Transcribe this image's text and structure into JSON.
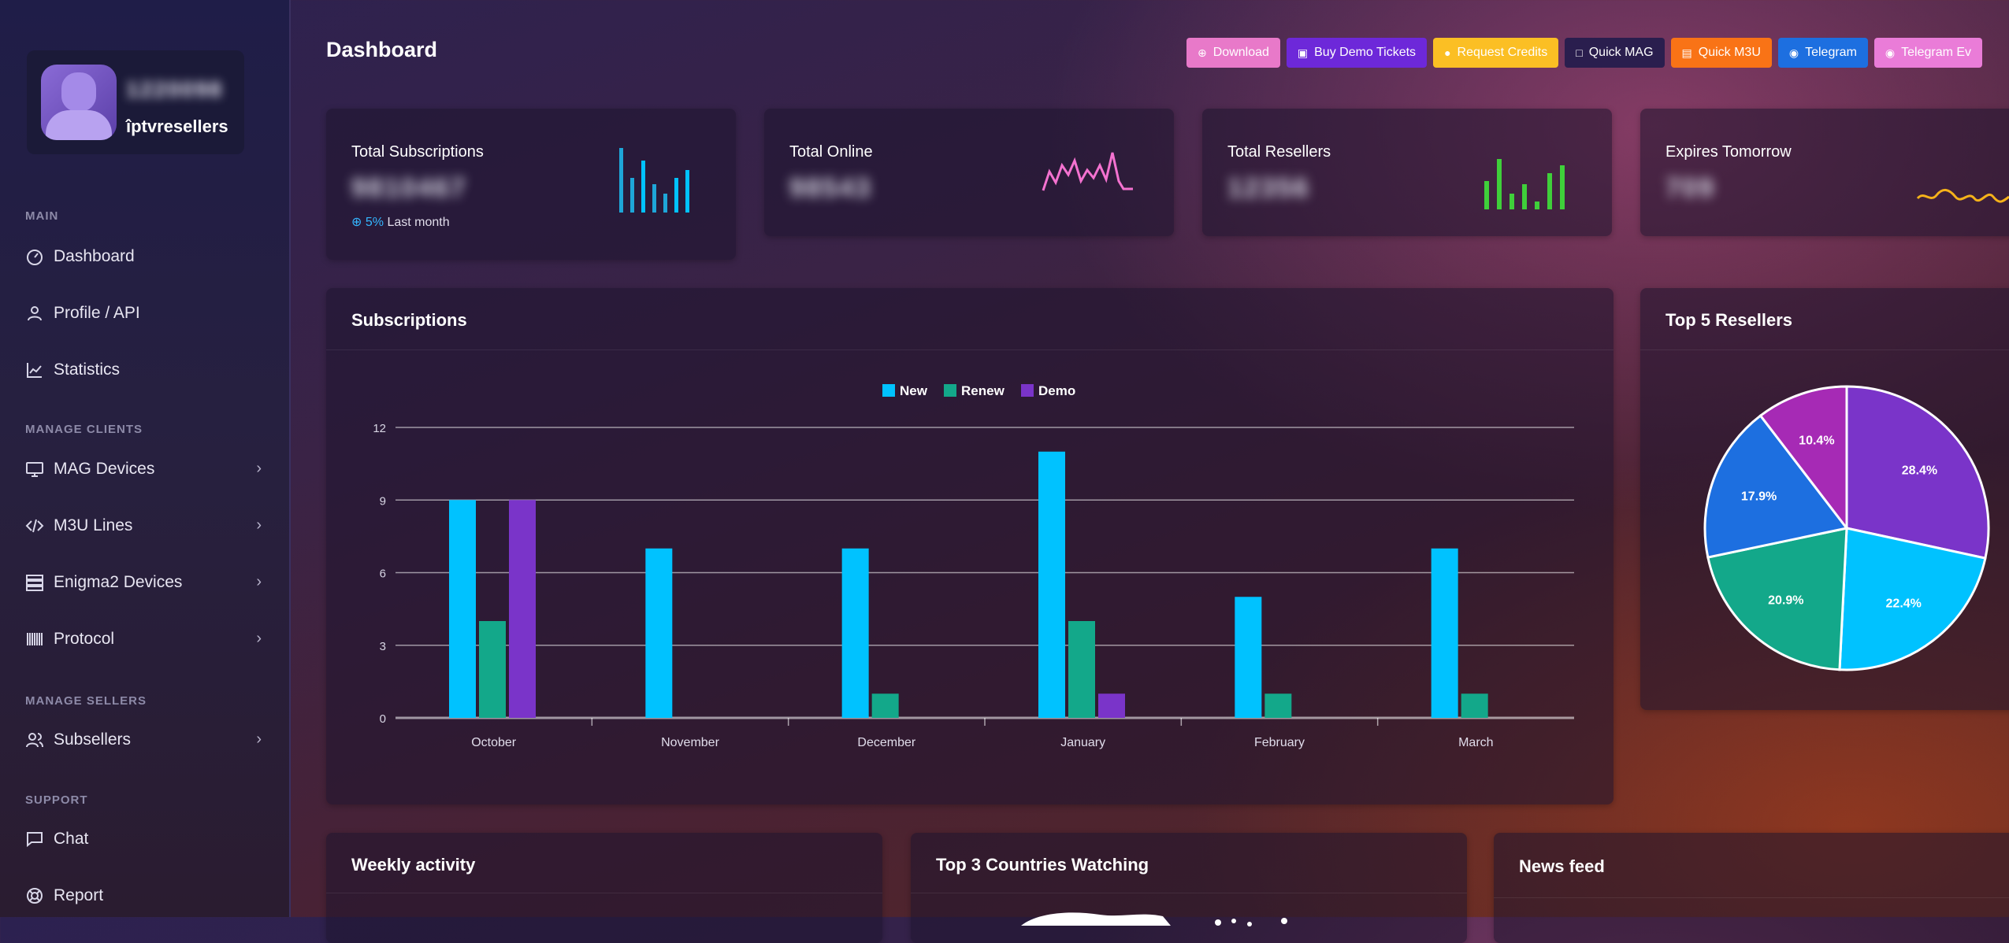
{
  "sidebar": {
    "profile": {
      "id": "1220098",
      "name": "îptvresellers"
    },
    "sections": {
      "main": "MAIN",
      "manage_clients": "MANAGE CLIENTS",
      "manage_sellers": "MANAGE SELLERS",
      "support": "SUPPORT"
    },
    "items": {
      "dashboard": "Dashboard",
      "profile_api": "Profile / API",
      "statistics": "Statistics",
      "mag_devices": "MAG Devices",
      "m3u_lines": "M3U Lines",
      "enigma2_devices": "Enigma2 Devices",
      "protocol": "Protocol",
      "subsellers": "Subsellers",
      "chat": "Chat",
      "report": "Report"
    }
  },
  "header": {
    "title": "Dashboard",
    "actions": [
      {
        "label": "Download",
        "color": "#e879c9"
      },
      {
        "label": "Buy Demo Tickets",
        "color": "#6d28d9"
      },
      {
        "label": "Request Credits",
        "color": "#fbbf24"
      },
      {
        "label": "Quick MAG",
        "color": "#2a1e4e"
      },
      {
        "label": "Quick M3U",
        "color": "#f97316"
      },
      {
        "label": "Telegram",
        "color": "#1d6fe0"
      },
      {
        "label": "Telegram Ev",
        "color": "#ea7cd8"
      }
    ]
  },
  "stats": {
    "total_subscriptions": {
      "title": "Total Subscriptions",
      "value": "9810467",
      "change": "5%",
      "change_label": "Last month"
    },
    "total_online": {
      "title": "Total Online",
      "value": "98543"
    },
    "total_resellers": {
      "title": "Total Resellers",
      "value": "12356"
    },
    "expires_tomorrow": {
      "title": "Expires Tomorrow",
      "value": "709"
    }
  },
  "colors": {
    "new": "#00c2ff",
    "renew": "#13a88a",
    "demo": "#7a34c9",
    "online_line": "#f472d0",
    "resellers_bars": "#3fcf3a",
    "expires_line": "#f5b21a"
  },
  "subscriptions_card": {
    "title": "Subscriptions"
  },
  "top_resellers_card": {
    "title": "Top 5 Resellers"
  },
  "weekly_activity": {
    "title": "Weekly activity"
  },
  "top_countries": {
    "title": "Top 3 Countries Watching"
  },
  "news_feed": {
    "title": "News feed"
  },
  "chart_data": [
    {
      "type": "bar",
      "categories": [
        "October",
        "November",
        "December",
        "January",
        "February",
        "March"
      ],
      "series": [
        {
          "name": "New",
          "values": [
            9,
            7,
            7,
            11,
            5,
            7
          ]
        },
        {
          "name": "Renew",
          "values": [
            4,
            0,
            1,
            4,
            1,
            1
          ]
        },
        {
          "name": "Demo",
          "values": [
            9,
            0,
            0,
            1,
            0,
            0
          ]
        }
      ],
      "ylim": [
        0,
        12
      ],
      "yticks": [
        0,
        3,
        6,
        9,
        12
      ],
      "grid": true,
      "legend": "top"
    },
    {
      "type": "pie",
      "slices": [
        {
          "label": "28.4%",
          "value": 28.4,
          "color": "#7a34c9"
        },
        {
          "label": "22.4%",
          "value": 22.4,
          "color": "#00c2ff"
        },
        {
          "label": "20.9%",
          "value": 20.9,
          "color": "#13a88a"
        },
        {
          "label": "17.9%",
          "value": 17.9,
          "color": "#1d6fe0"
        },
        {
          "label": "10.4%",
          "value": 10.4,
          "color": "#a62ab5"
        }
      ]
    }
  ]
}
